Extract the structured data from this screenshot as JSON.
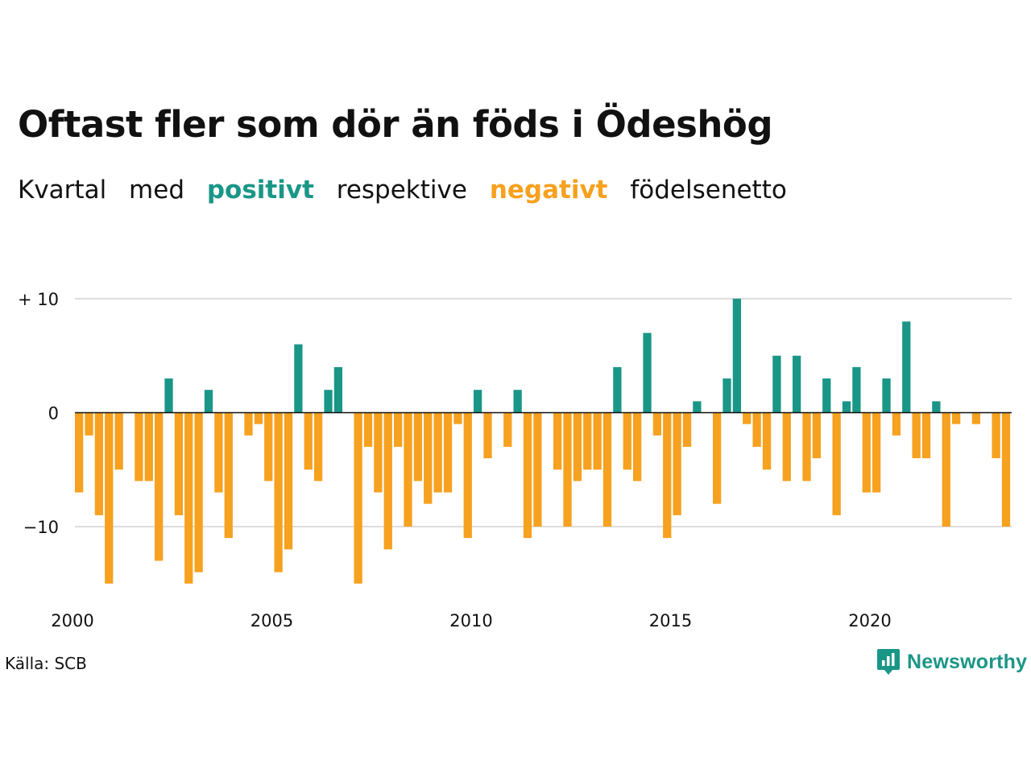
{
  "title": "Oftast fler som dör än föds i Ödeshög",
  "subtitle": {
    "w1": "Kvartal",
    "w2": "med",
    "positive": "positivt",
    "w3": "respektive",
    "negative": "negativt",
    "w4": "födelsenetto"
  },
  "source": "Källa: SCB",
  "brand": "Newsworthy",
  "colors": {
    "positive": "#1a9687",
    "negative": "#f6a11f",
    "grid": "#dddddd",
    "text": "#111111"
  },
  "chart_data": {
    "type": "bar",
    "x_start_year": 2000,
    "periods_per_year": 4,
    "xticks": [
      2000,
      2005,
      2010,
      2015,
      2020
    ],
    "xtick_labels": [
      "2000",
      "2005",
      "2010",
      "2015",
      "2020"
    ],
    "yticks": [
      10,
      0,
      -10
    ],
    "ytick_labels": [
      "+ 10",
      "0",
      "−10"
    ],
    "ylim": [
      -15.5,
      10
    ],
    "grid": true,
    "values": [
      -7,
      -2,
      -9,
      -15,
      -5,
      0,
      -6,
      -6,
      -13,
      3,
      -9,
      -15,
      -14,
      2,
      -7,
      -11,
      0,
      -2,
      -1,
      -6,
      -14,
      -12,
      6,
      -5,
      -6,
      2,
      4,
      0,
      -15,
      -3,
      -7,
      -12,
      -3,
      -10,
      -6,
      -8,
      -7,
      -7,
      -1,
      -11,
      2,
      -4,
      0,
      -3,
      2,
      -11,
      -10,
      0,
      -5,
      -10,
      -6,
      -5,
      -5,
      -10,
      4,
      -5,
      -6,
      7,
      -2,
      -11,
      -9,
      -3,
      1,
      0,
      -8,
      3,
      10,
      -1,
      -3,
      -5,
      5,
      -6,
      5,
      -6,
      -4,
      3,
      -9,
      1,
      4,
      -7,
      -7,
      3,
      -2,
      8,
      -4,
      -4,
      1,
      -10,
      -1,
      0,
      -1,
      0,
      -4,
      -10
    ]
  }
}
